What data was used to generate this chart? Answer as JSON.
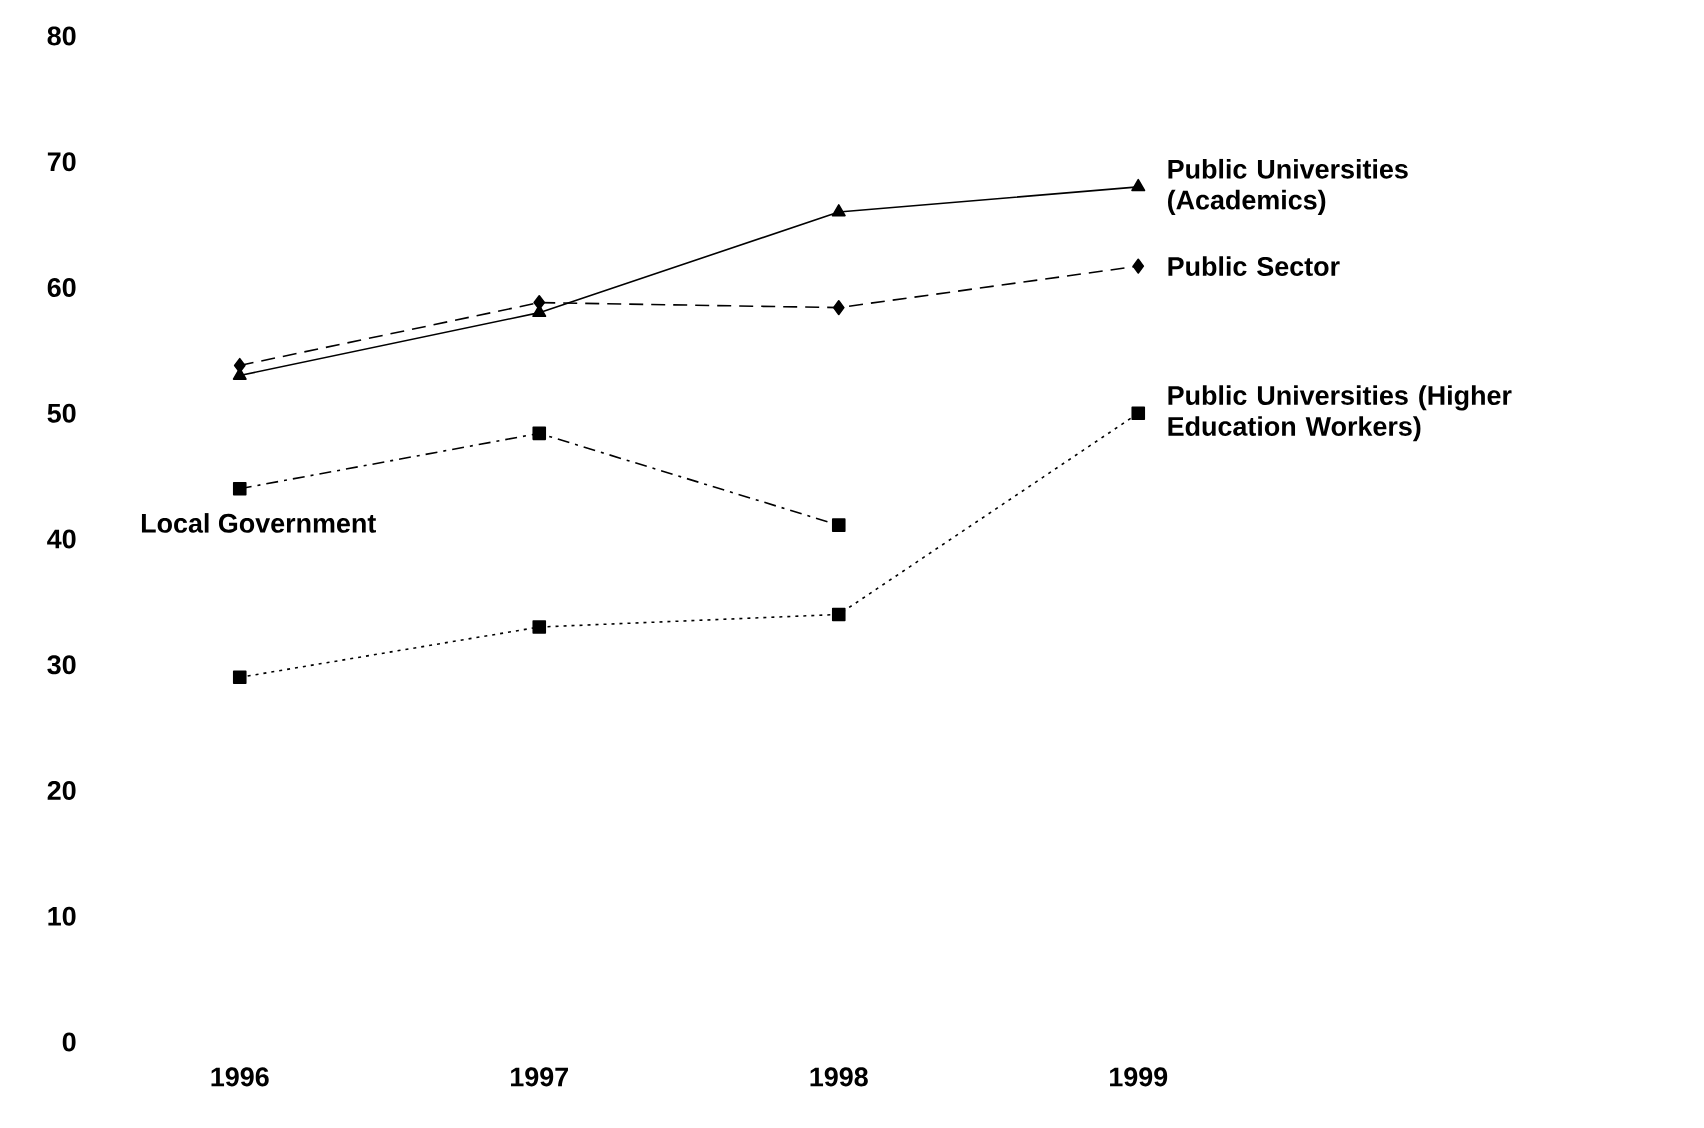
{
  "chart_data": {
    "type": "line",
    "categories": [
      "1996",
      "1997",
      "1998",
      "1999"
    ],
    "ylim": [
      0,
      80
    ],
    "yticks": [
      0,
      10,
      20,
      30,
      40,
      50,
      60,
      70,
      80
    ],
    "grid": false,
    "legend": false,
    "series": [
      {
        "name": "Public Universities (Academics)",
        "color": "#000000",
        "marker": "triangle",
        "line_style": "solid",
        "values": [
          53,
          58,
          66,
          68
        ]
      },
      {
        "name": "Public Sector",
        "color": "#000000",
        "marker": "diamond",
        "line_style": "dashed",
        "values": [
          53.8,
          58.8,
          58.4,
          61.7
        ]
      },
      {
        "name": "Local Government",
        "color": "#000000",
        "marker": "square",
        "line_style": "dashdot",
        "values": [
          44,
          48.4,
          41.1,
          null
        ]
      },
      {
        "name": "Public Universities (Higher Education Workers)",
        "color": "#000000",
        "marker": "square",
        "line_style": "dotted",
        "values": [
          29,
          33,
          34,
          50
        ]
      }
    ]
  }
}
